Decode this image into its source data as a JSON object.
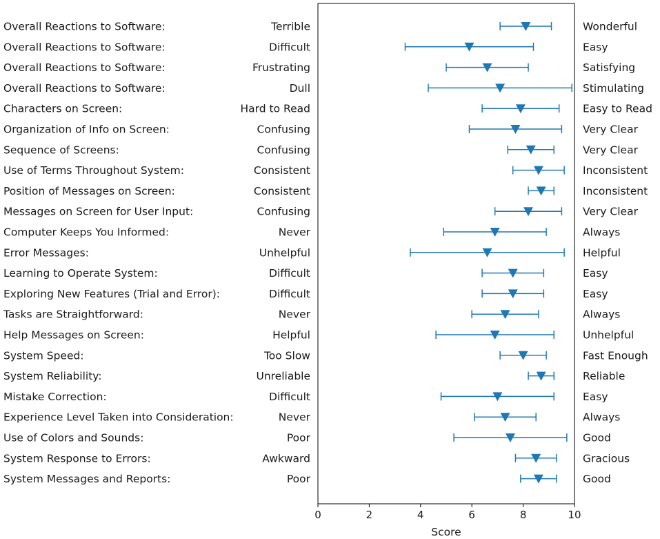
{
  "chart_data": {
    "type": "errorbar",
    "xlabel": "Score",
    "xlim": [
      0,
      10
    ],
    "xticks": [
      0,
      2,
      4,
      6,
      8,
      10
    ],
    "color": "#1f77b4",
    "marker": "down-triangle",
    "items": [
      {
        "label": "Overall Reactions to Software:",
        "left": "Terrible",
        "right": "Wonderful",
        "mean": 8.1,
        "low": 7.1,
        "high": 9.1
      },
      {
        "label": "Overall Reactions to Software:",
        "left": "Difficult",
        "right": "Easy",
        "mean": 5.9,
        "low": 3.4,
        "high": 8.4
      },
      {
        "label": "Overall Reactions to Software:",
        "left": "Frustrating",
        "right": "Satisfying",
        "mean": 6.6,
        "low": 5.0,
        "high": 8.2
      },
      {
        "label": "Overall Reactions to Software:",
        "left": "Dull",
        "right": "Stimulating",
        "mean": 7.1,
        "low": 4.3,
        "high": 9.9
      },
      {
        "label": "Characters on Screen:",
        "left": "Hard to Read",
        "right": "Easy to Read",
        "mean": 7.9,
        "low": 6.4,
        "high": 9.4
      },
      {
        "label": "Organization of Info on Screen:",
        "left": "Confusing",
        "right": "Very Clear",
        "mean": 7.7,
        "low": 5.9,
        "high": 9.5
      },
      {
        "label": "Sequence of Screens:",
        "left": "Confusing",
        "right": "Very Clear",
        "mean": 8.3,
        "low": 7.4,
        "high": 9.2
      },
      {
        "label": "Use of Terms Throughout System:",
        "left": "Consistent",
        "right": "Inconsistent",
        "mean": 8.6,
        "low": 7.6,
        "high": 9.6
      },
      {
        "label": "Position of Messages on Screen:",
        "left": "Consistent",
        "right": "Inconsistent",
        "mean": 8.7,
        "low": 8.2,
        "high": 9.2
      },
      {
        "label": "Messages on Screen for User Input:",
        "left": "Confusing",
        "right": "Very Clear",
        "mean": 8.2,
        "low": 6.9,
        "high": 9.5
      },
      {
        "label": "Computer Keeps You Informed:",
        "left": "Never",
        "right": "Always",
        "mean": 6.9,
        "low": 4.9,
        "high": 8.9
      },
      {
        "label": "Error Messages:",
        "left": "Unhelpful",
        "right": "Helpful",
        "mean": 6.6,
        "low": 3.6,
        "high": 9.6
      },
      {
        "label": "Learning to Operate System:",
        "left": "Difficult",
        "right": "Easy",
        "mean": 7.6,
        "low": 6.4,
        "high": 8.8
      },
      {
        "label": "Exploring New Features (Trial and Error):",
        "left": "Difficult",
        "right": "Easy",
        "mean": 7.6,
        "low": 6.4,
        "high": 8.8
      },
      {
        "label": "Tasks are Straightforward:",
        "left": "Never",
        "right": "Always",
        "mean": 7.3,
        "low": 6.0,
        "high": 8.6
      },
      {
        "label": "Help Messages on Screen:",
        "left": "Helpful",
        "right": "Unhelpful",
        "mean": 6.9,
        "low": 4.6,
        "high": 9.2
      },
      {
        "label": "System Speed:",
        "left": "Too Slow",
        "right": "Fast Enough",
        "mean": 8.0,
        "low": 7.1,
        "high": 8.9
      },
      {
        "label": "System Reliability:",
        "left": "Unreliable",
        "right": "Reliable",
        "mean": 8.7,
        "low": 8.2,
        "high": 9.2
      },
      {
        "label": "Mistake Correction:",
        "left": "Difficult",
        "right": "Easy",
        "mean": 7.0,
        "low": 4.8,
        "high": 9.2
      },
      {
        "label": "Experience Level Taken into Consideration:",
        "left": "Never",
        "right": "Always",
        "mean": 7.3,
        "low": 6.1,
        "high": 8.5
      },
      {
        "label": "Use of Colors and Sounds:",
        "left": "Poor",
        "right": "Good",
        "mean": 7.5,
        "low": 5.3,
        "high": 9.7
      },
      {
        "label": "System Response to Errors:",
        "left": "Awkward",
        "right": "Gracious",
        "mean": 8.5,
        "low": 7.7,
        "high": 9.3
      },
      {
        "label": "System Messages and Reports:",
        "left": "Poor",
        "right": "Good",
        "mean": 8.6,
        "low": 7.9,
        "high": 9.3
      }
    ]
  }
}
